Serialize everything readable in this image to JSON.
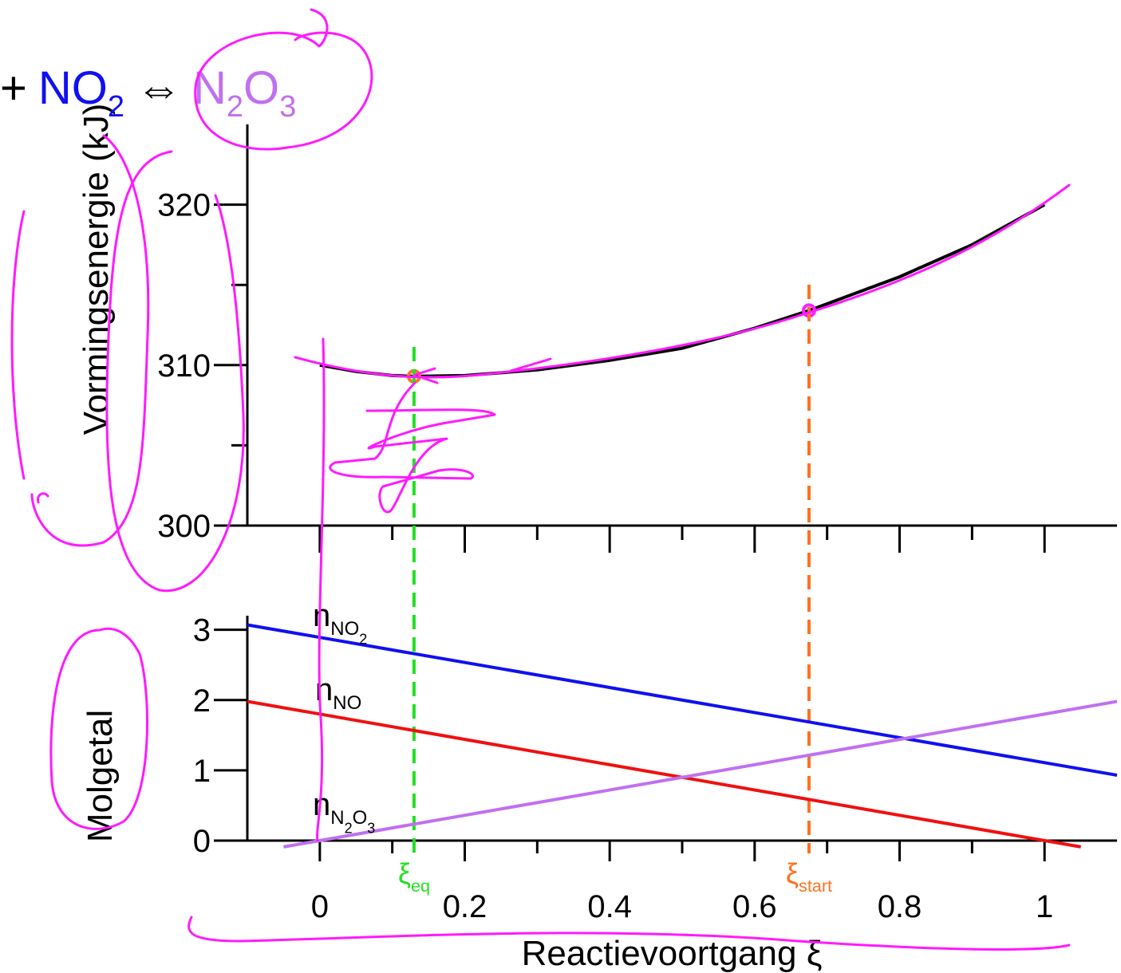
{
  "chart_data": [
    {
      "type": "line",
      "title": [
        {
          "text": "+",
          "color": "#000000"
        },
        {
          "text": "NO",
          "color": "#1010f0"
        },
        {
          "text": "2",
          "color": "#1010f0"
        },
        {
          "text": "⇔",
          "color": "#000000"
        },
        {
          "text": "N",
          "color": "#c070f0"
        },
        {
          "text": "2",
          "color": "#c070f0"
        },
        {
          "text": "O",
          "color": "#c070f0"
        },
        {
          "text": "3",
          "color": "#c070f0"
        }
      ],
      "ylabel": "Vormingsenergie (kJ)",
      "x": [
        0,
        0.05,
        0.1,
        0.13,
        0.2,
        0.3,
        0.4,
        0.5,
        0.6,
        0.675,
        0.8,
        0.9,
        1
      ],
      "series": [
        {
          "color": "#000000",
          "values": [
            310.0,
            309.6,
            309.35,
            309.3,
            309.35,
            309.7,
            310.3,
            311.05,
            312.3,
            313.4,
            315.5,
            317.5,
            320.0
          ]
        }
      ],
      "points": [
        {
          "x": 0.13,
          "y": 309.3,
          "color": "#ff7020"
        },
        {
          "x": 0.675,
          "y": 313.4,
          "color": "#ff20ff"
        }
      ],
      "xlim": [
        -0.1,
        1.1
      ],
      "xticks": [
        0,
        0.2,
        0.4,
        0.6,
        0.8,
        1
      ],
      "xminor": [
        0.1,
        0.3,
        0.5,
        0.7,
        0.9
      ],
      "ylim": [
        300,
        325
      ],
      "yticks": [
        300,
        310,
        320
      ],
      "yminor": [
        305,
        315
      ]
    },
    {
      "type": "line",
      "ylabel": "Molgetal",
      "xlabel": "Reactievoortgang ξ",
      "series": [
        {
          "label": [
            "n",
            "NO",
            "2"
          ],
          "color": "#1010f0",
          "x": [
            -0.1,
            1.1
          ],
          "values": [
            3.07,
            0.93
          ]
        },
        {
          "label": [
            "n",
            "NO"
          ],
          "color": "#f01010",
          "x": [
            -0.1,
            1.05
          ],
          "values": [
            1.98,
            -0.09
          ]
        },
        {
          "label": [
            "n",
            "N",
            "2",
            "O",
            "3"
          ],
          "color": "#c070f0",
          "x": [
            -0.05,
            1.1
          ],
          "values": [
            -0.09,
            1.98
          ]
        }
      ],
      "vlines": [
        {
          "x": 0.13,
          "color": "#22e022",
          "label": [
            "ξ",
            "eq"
          ]
        },
        {
          "x": 0.675,
          "color": "#ff7020",
          "label": [
            "ξ",
            "start"
          ]
        }
      ],
      "xlim": [
        -0.1,
        1.1
      ],
      "xticks": [
        0,
        0.2,
        0.4,
        0.6,
        0.8,
        1
      ],
      "xminor": [
        0.1,
        0.3,
        0.5,
        0.7,
        0.9
      ],
      "ylim": [
        0,
        3.2
      ],
      "yticks": [
        0,
        1,
        2,
        3
      ]
    }
  ]
}
